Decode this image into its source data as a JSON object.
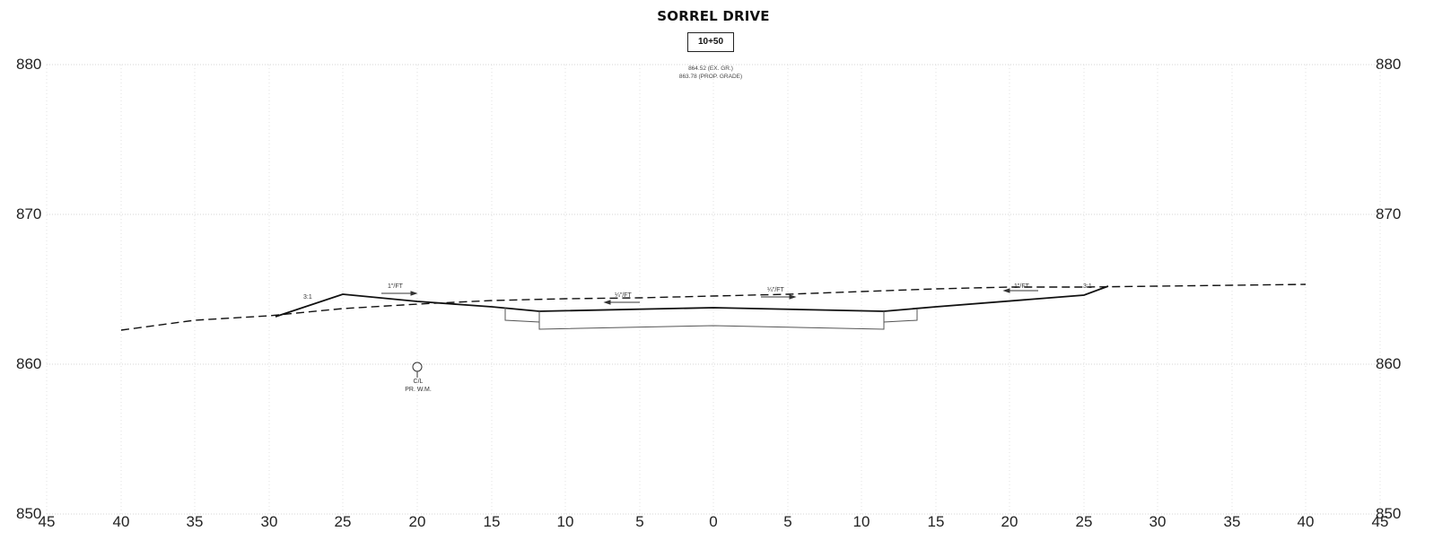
{
  "title": "SORREL DRIVE",
  "station": "10+50",
  "elevation_notes": {
    "existing": "864.52 (EX. GR.)",
    "proposed": "863.78 (PROP. GRADE)"
  },
  "y_axis": {
    "left_labels": [
      "880",
      "870",
      "860",
      "850"
    ],
    "right_labels": [
      "880",
      "870",
      "860",
      "850"
    ]
  },
  "x_axis": {
    "labels": [
      "45",
      "40",
      "35",
      "30",
      "25",
      "20",
      "15",
      "10",
      "5",
      "0",
      "5",
      "10",
      "15",
      "20",
      "25",
      "30",
      "35",
      "40",
      "45"
    ]
  },
  "annotations": {
    "slope_left": "3:1",
    "slope_right": "3:1",
    "cross_slope_1": "1\"/FT",
    "cross_slope_2": "¼\"/FT",
    "cross_slope_3": "¼\"/FT",
    "cross_slope_4": "1\"/FT",
    "watermain_label": "C/L",
    "watermain_sub": "PR. W.M."
  },
  "chart_data": {
    "type": "cross-section",
    "title": "SORREL DRIVE",
    "station": "10+50",
    "x_range": [
      -45,
      45
    ],
    "y_range": [
      850,
      880
    ],
    "grid": true,
    "series": [
      {
        "name": "existing grade",
        "style": "dashed",
        "x": [
          -40,
          -30,
          -20,
          -10,
          0,
          10,
          20,
          27,
          40
        ],
        "y": [
          862.3,
          863.1,
          863.7,
          864.2,
          864.52,
          864.9,
          865.1,
          865.2,
          865.3
        ]
      },
      {
        "name": "proposed grade",
        "style": "solid",
        "x": [
          -29.5,
          -25,
          -14,
          -12,
          0,
          12,
          14,
          25,
          26.7
        ],
        "y": [
          863.1,
          864.6,
          863.8,
          863.5,
          863.78,
          863.5,
          863.7,
          864.6,
          865.2
        ]
      }
    ]
  }
}
